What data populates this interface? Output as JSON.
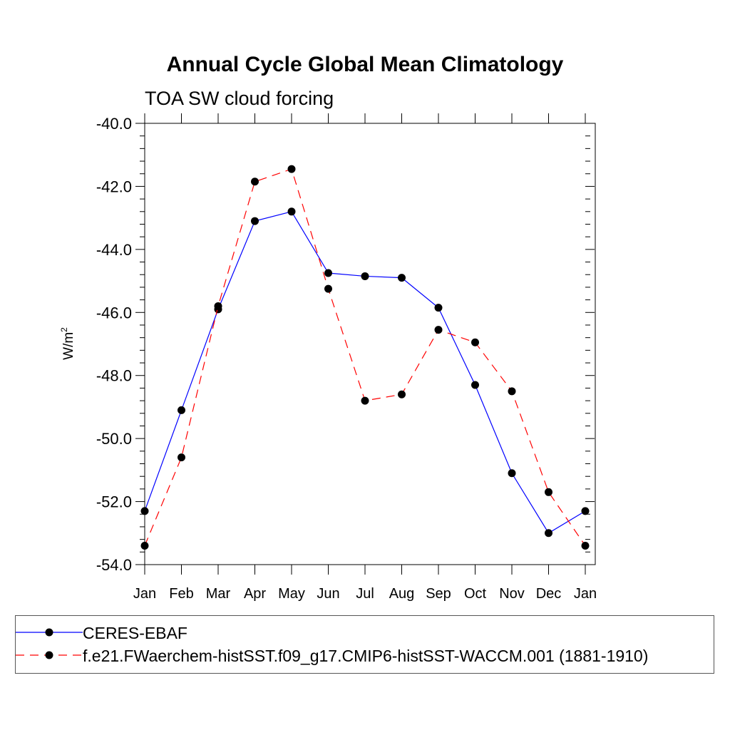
{
  "chart_data": {
    "type": "line",
    "title": "Annual Cycle Global Mean Climatology",
    "subtitle": "TOA SW cloud forcing",
    "xlabel": "",
    "ylabel": "W/m",
    "ylabel_superscript": "2",
    "categories": [
      "Jan",
      "Feb",
      "Mar",
      "Apr",
      "May",
      "Jun",
      "Jul",
      "Aug",
      "Sep",
      "Oct",
      "Nov",
      "Dec",
      "Jan"
    ],
    "ylim": [
      -54.0,
      -40.0
    ],
    "yticks": [
      "-40.0",
      "-42.0",
      "-44.0",
      "-46.0",
      "-48.0",
      "-50.0",
      "-52.0",
      "-54.0"
    ],
    "ytick_values": [
      -40,
      -42,
      -44,
      -46,
      -48,
      -50,
      -52,
      -54
    ],
    "series": [
      {
        "name": "CERES-EBAF",
        "color": "#0000ff",
        "dash": "solid",
        "values": [
          -52.3,
          -49.1,
          -45.9,
          -43.1,
          -42.8,
          -44.75,
          -44.85,
          -44.9,
          -45.85,
          -48.3,
          -51.1,
          -53.0,
          -52.3
        ]
      },
      {
        "name": "f.e21.FWaerchem-histSST.f09_g17.CMIP6-histSST-WACCM.001 (1881-1910)",
        "color": "#ff0000",
        "dash": "dashed",
        "values": [
          -53.4,
          -50.6,
          -45.8,
          -41.85,
          -41.45,
          -45.25,
          -48.8,
          -48.6,
          -46.55,
          -46.95,
          -48.5,
          -51.7,
          -53.4
        ]
      }
    ]
  }
}
